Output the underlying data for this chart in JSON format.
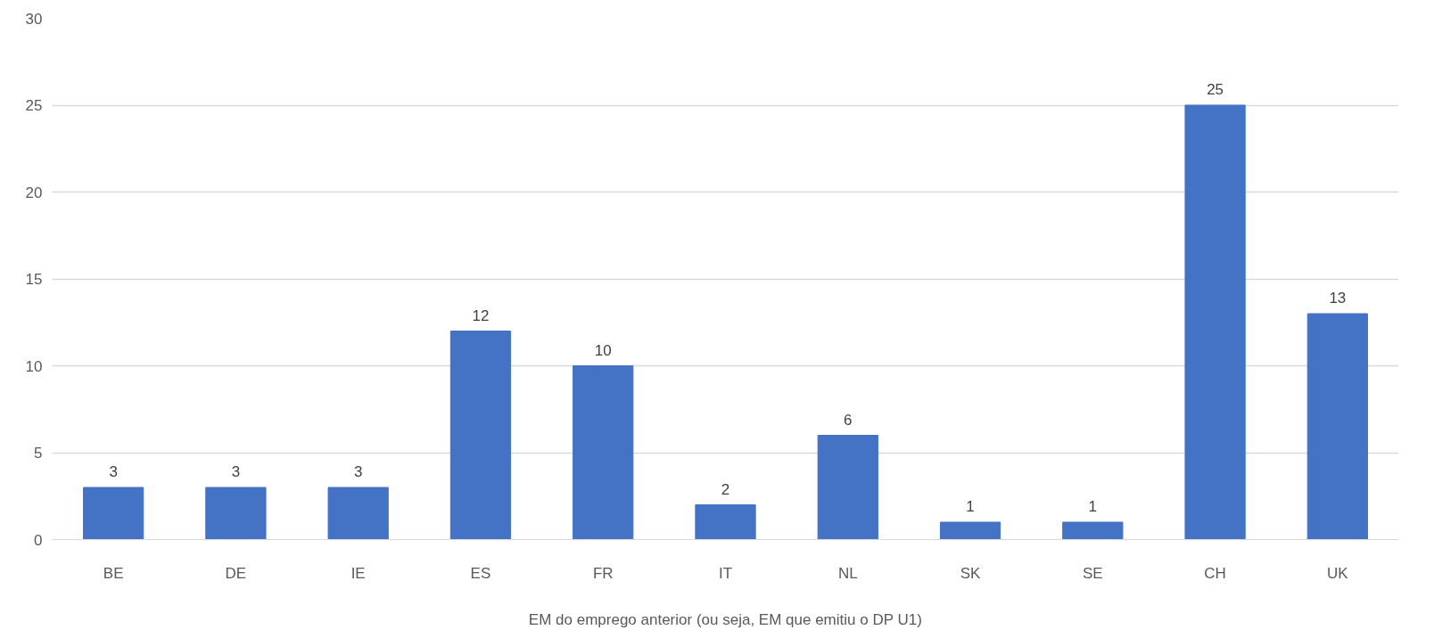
{
  "chart_data": {
    "type": "bar",
    "xlabel": "EM do emprego anterior (ou seja, EM que emitiu o DP U1)",
    "categories": [
      "BE",
      "DE",
      "IE",
      "ES",
      "FR",
      "IT",
      "NL",
      "SK",
      "SE",
      "CH",
      "UK"
    ],
    "values": [
      3,
      3,
      3,
      12,
      10,
      2,
      6,
      1,
      1,
      25,
      13
    ],
    "color": "#4472c4",
    "ylim": [
      0,
      30
    ],
    "yticks": [
      0,
      5,
      10,
      15,
      20,
      25,
      30
    ],
    "grid": "y",
    "data_labels": true
  }
}
